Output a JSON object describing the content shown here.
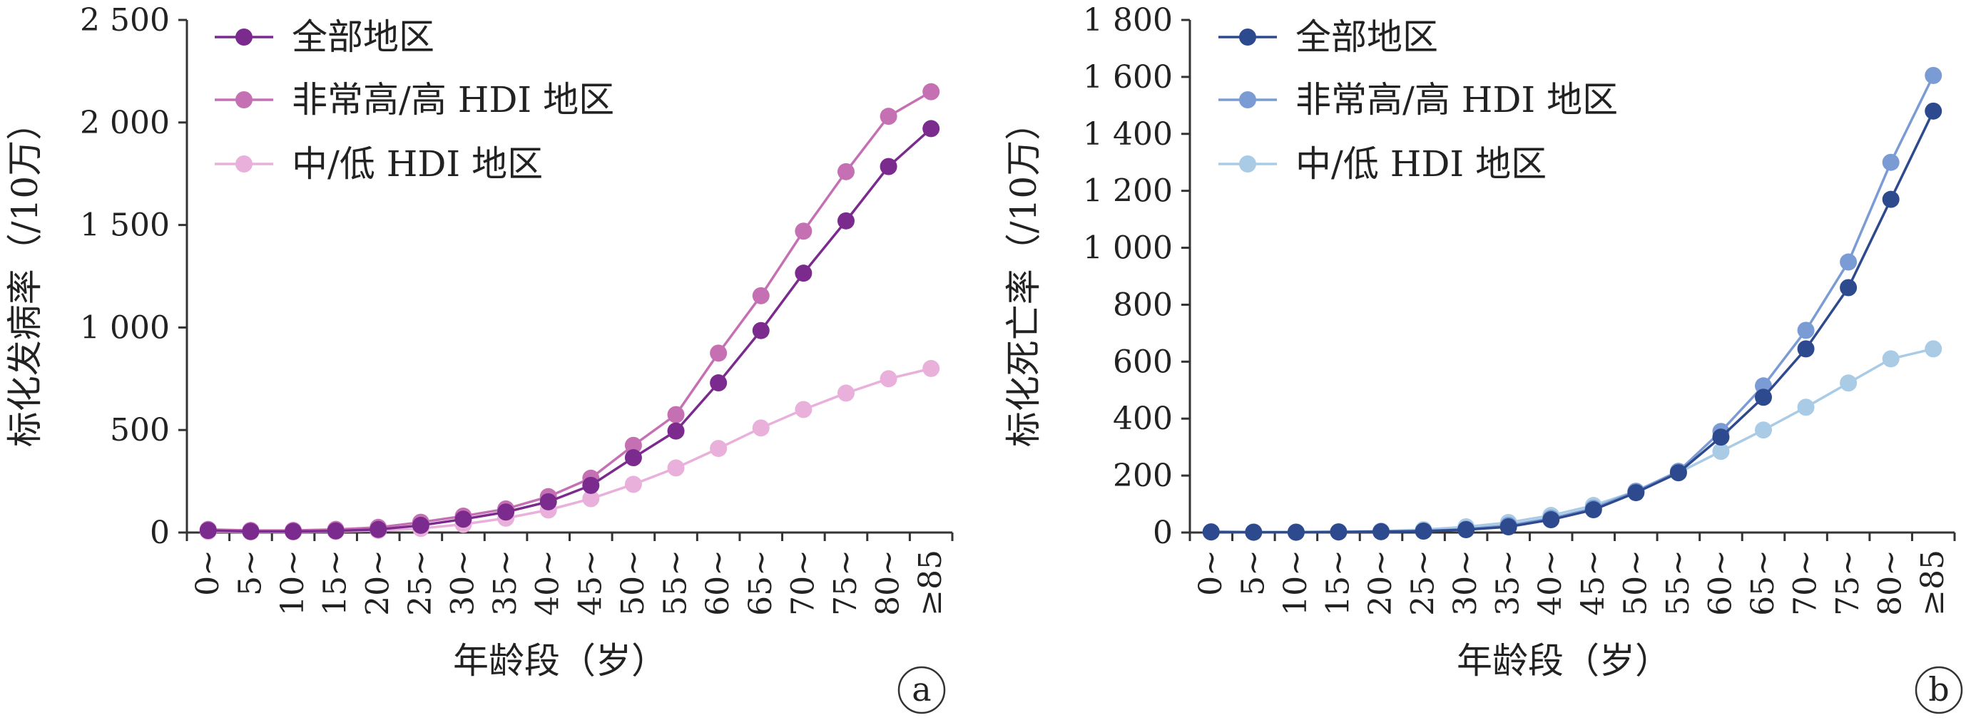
{
  "chart_data": [
    {
      "type": "line",
      "panel_label": "a",
      "ylabel": "标化发病率（/10万）",
      "xlabel": "年龄段（岁）",
      "ylim": [
        0,
        2500
      ],
      "yticks": [
        {
          "value": 0,
          "label": "0"
        },
        {
          "value": 500,
          "label": "500"
        },
        {
          "value": 1000,
          "label": "1 000"
        },
        {
          "value": 1500,
          "label": "1 500"
        },
        {
          "value": 2000,
          "label": "2 000"
        },
        {
          "value": 2500,
          "label": "2 500"
        }
      ],
      "categories": [
        "0~",
        "5~",
        "10~",
        "15~",
        "20~",
        "25~",
        "30~",
        "35~",
        "40~",
        "45~",
        "50~",
        "55~",
        "60~",
        "65~",
        "70~",
        "75~",
        "80~",
        "≥85"
      ],
      "grid": false,
      "legend_position": "top-left",
      "series": [
        {
          "name": "全部地区",
          "color": "#7b2a8e",
          "values": [
            10,
            5,
            5,
            8,
            15,
            35,
            65,
            100,
            150,
            230,
            365,
            495,
            730,
            985,
            1265,
            1520,
            1785,
            1970
          ]
        },
        {
          "name": "非常高/高 HDI 地区",
          "color": "#c670b4",
          "values": [
            15,
            10,
            10,
            15,
            25,
            50,
            80,
            115,
            175,
            265,
            425,
            575,
            875,
            1155,
            1470,
            1760,
            2030,
            2150
          ]
        },
        {
          "name": "中/低 HDI 地区",
          "color": "#e8b0da",
          "values": [
            5,
            3,
            3,
            5,
            10,
            20,
            40,
            70,
            110,
            165,
            235,
            315,
            410,
            510,
            600,
            680,
            750,
            800
          ]
        }
      ]
    },
    {
      "type": "line",
      "panel_label": "b",
      "ylabel": "标化死亡率（/10万）",
      "xlabel": "年龄段（岁）",
      "ylim": [
        0,
        1800
      ],
      "yticks": [
        {
          "value": 0,
          "label": "0"
        },
        {
          "value": 200,
          "label": "200"
        },
        {
          "value": 400,
          "label": "400"
        },
        {
          "value": 600,
          "label": "600"
        },
        {
          "value": 800,
          "label": "800"
        },
        {
          "value": 1000,
          "label": "1 000"
        },
        {
          "value": 1200,
          "label": "1 200"
        },
        {
          "value": 1400,
          "label": "1 400"
        },
        {
          "value": 1600,
          "label": "1 600"
        },
        {
          "value": 1800,
          "label": "1 800"
        }
      ],
      "categories": [
        "0~",
        "5~",
        "10~",
        "15~",
        "20~",
        "25~",
        "30~",
        "35~",
        "40~",
        "45~",
        "50~",
        "55~",
        "60~",
        "65~",
        "70~",
        "75~",
        "80~",
        "≥85"
      ],
      "grid": false,
      "legend_position": "top-left",
      "series": [
        {
          "name": "全部地区",
          "color": "#2e4a8e",
          "values": [
            2,
            1,
            1,
            2,
            3,
            5,
            10,
            20,
            45,
            80,
            140,
            210,
            335,
            475,
            645,
            860,
            1170,
            1480
          ]
        },
        {
          "name": "非常高/高 HDI 地区",
          "color": "#7b9bd4",
          "values": [
            2,
            1,
            1,
            2,
            3,
            5,
            12,
            25,
            50,
            85,
            145,
            215,
            355,
            515,
            710,
            950,
            1300,
            1605
          ]
        },
        {
          "name": "中/低 HDI 地区",
          "color": "#a9cbe6",
          "values": [
            3,
            2,
            2,
            3,
            5,
            10,
            20,
            35,
            60,
            95,
            145,
            210,
            285,
            360,
            440,
            525,
            610,
            645
          ]
        }
      ]
    }
  ]
}
